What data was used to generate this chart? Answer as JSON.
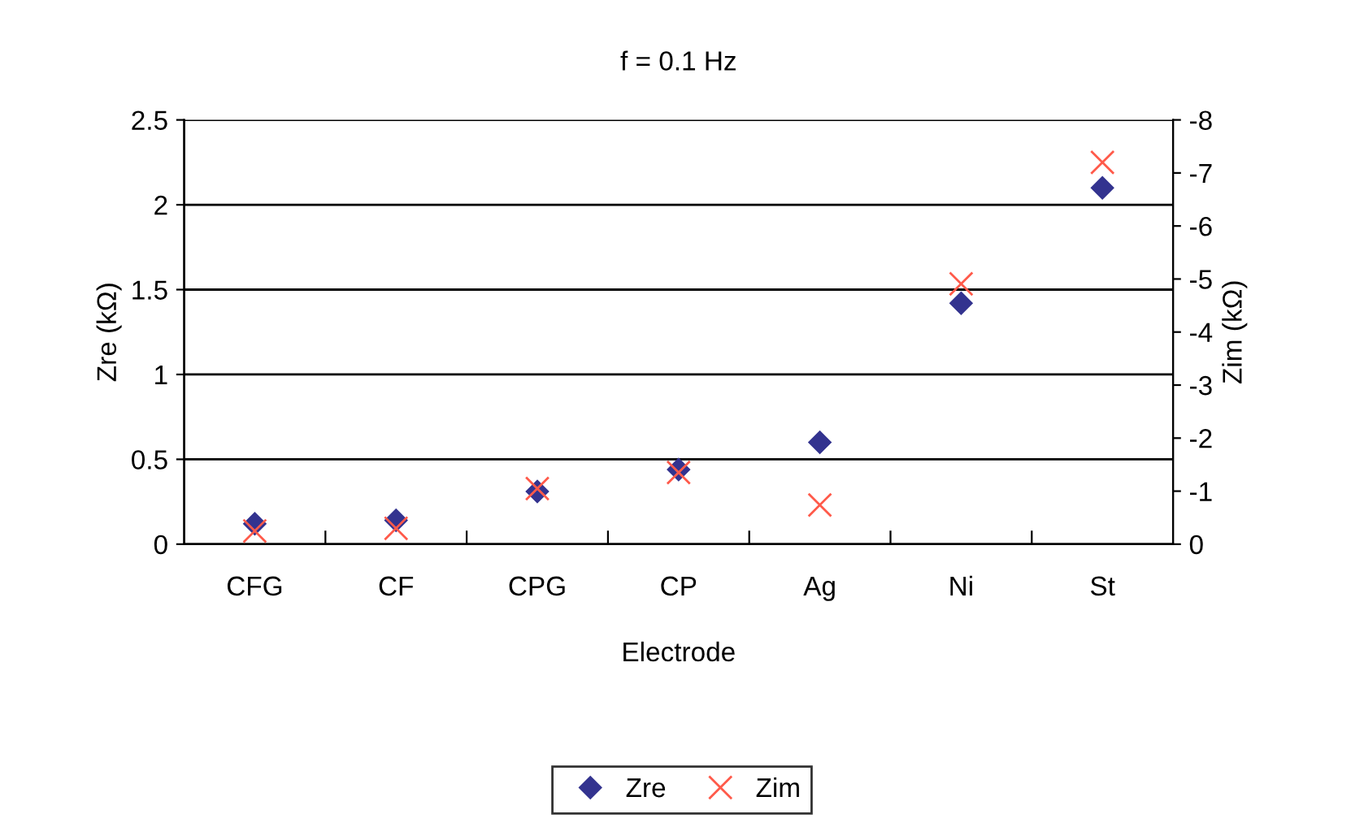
{
  "chart_data": {
    "type": "scatter",
    "title": "f = 0.1 Hz",
    "xlabel": "Electrode",
    "ylabel": "Zre (kΩ)",
    "y2label": "Zim (kΩ)",
    "categories": [
      "CFG",
      "CF",
      "CPG",
      "CP",
      "Ag",
      "Ni",
      "St"
    ],
    "series": [
      {
        "name": "Zre",
        "color": "#33338f",
        "marker": "diamond",
        "values": [
          0.12,
          0.14,
          0.31,
          0.44,
          0.6,
          1.42,
          2.1
        ]
      },
      {
        "name": "Zim",
        "color": "#ff5a4a",
        "marker": "cross",
        "axis": "y2",
        "values": [
          -0.25,
          -0.3,
          -1.05,
          -1.35,
          -0.74,
          -4.91,
          -7.2
        ]
      }
    ],
    "ylim": [
      0,
      2.5
    ],
    "yticks": [
      0,
      0.5,
      1,
      1.5,
      2,
      2.5
    ],
    "y2lim": [
      0,
      -8
    ],
    "y2ticks": [
      0,
      -1,
      -2,
      -3,
      -4,
      -5,
      -6,
      -7,
      -8
    ],
    "grid": "y",
    "legend": "bottom"
  }
}
